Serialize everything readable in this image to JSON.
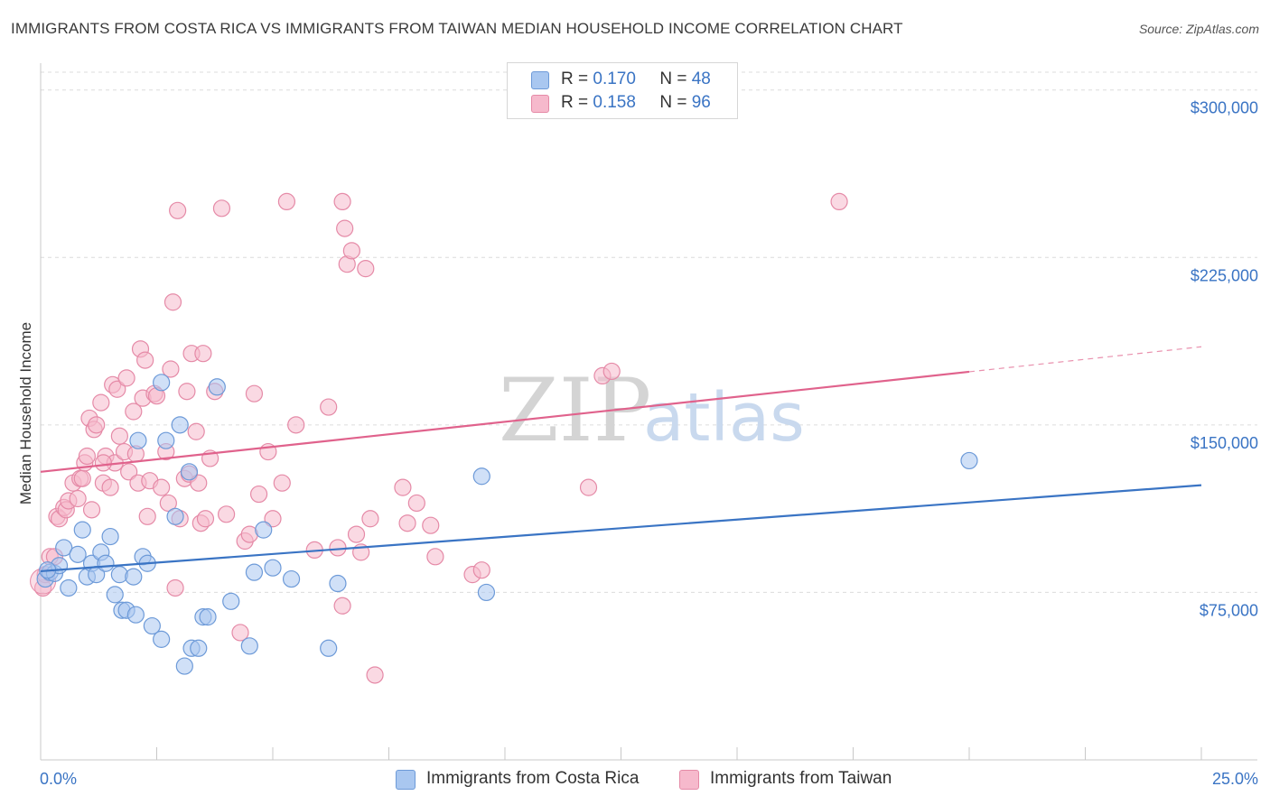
{
  "title": "IMMIGRANTS FROM COSTA RICA VS IMMIGRANTS FROM TAIWAN MEDIAN HOUSEHOLD INCOME CORRELATION CHART",
  "source": "Source: ZipAtlas.com",
  "colors": {
    "blue_fill": "#a9c7f0",
    "blue_stroke": "#6d9ad8",
    "blue_line": "#3a74c4",
    "pink_fill": "#f6b9cc",
    "pink_stroke": "#e58aa7",
    "pink_line": "#e0628c",
    "axis_text": "#3a74c4",
    "grid": "#dcdcdc"
  },
  "legend": {
    "rows": [
      {
        "r_label": "R =",
        "r_value": "0.170",
        "n_label": "N =",
        "n_value": "48",
        "color": "#a9c7f0"
      },
      {
        "r_label": "R =",
        "r_value": "0.158",
        "n_label": "N =",
        "n_value": "96",
        "color": "#f6b9cc"
      }
    ]
  },
  "bottom_legend": [
    {
      "label": "Immigrants from Costa Rica",
      "color": "#a9c7f0"
    },
    {
      "label": "Immigrants from Taiwan",
      "color": "#f6b9cc"
    }
  ],
  "chart_data": {
    "type": "scatter",
    "title": "IMMIGRANTS FROM COSTA RICA VS IMMIGRANTS FROM TAIWAN MEDIAN HOUSEHOLD INCOME CORRELATION CHART",
    "xlabel": "",
    "ylabel": "Median Household Income",
    "xlim": [
      0,
      25
    ],
    "ylim": [
      0,
      312000
    ],
    "x_tick_labels": [
      {
        "x": 0,
        "label": "0.0%"
      },
      {
        "x": 25,
        "label": "25.0%"
      }
    ],
    "y_ticks": [
      {
        "y": 75000,
        "label": "$75,000"
      },
      {
        "y": 150000,
        "label": "$150,000"
      },
      {
        "y": 225000,
        "label": "$225,000"
      },
      {
        "y": 300000,
        "label": "$300,000"
      }
    ],
    "watermark": [
      "ZIP",
      "atlas"
    ],
    "series": [
      {
        "name": "Immigrants from Costa Rica",
        "r": 0.17,
        "n": 48,
        "trend": {
          "x0": 0,
          "y0": 84500,
          "x1": 25,
          "y1": 123000,
          "dashed_from_x": null
        },
        "points": [
          [
            0.1,
            81000
          ],
          [
            0.2,
            84000
          ],
          [
            0.3,
            83500
          ],
          [
            0.4,
            87000
          ],
          [
            0.5,
            95000
          ],
          [
            0.6,
            77000
          ],
          [
            0.8,
            92000
          ],
          [
            0.9,
            103000
          ],
          [
            1.0,
            82000
          ],
          [
            1.1,
            88000
          ],
          [
            1.2,
            83000
          ],
          [
            1.3,
            93000
          ],
          [
            1.4,
            88000
          ],
          [
            1.5,
            100000
          ],
          [
            1.6,
            74000
          ],
          [
            1.7,
            83000
          ],
          [
            1.75,
            67000
          ],
          [
            1.85,
            67000
          ],
          [
            2.0,
            82000
          ],
          [
            2.05,
            65000
          ],
          [
            2.1,
            143000
          ],
          [
            2.2,
            91000
          ],
          [
            2.3,
            88000
          ],
          [
            2.4,
            60000
          ],
          [
            2.6,
            169000
          ],
          [
            2.6,
            54000
          ],
          [
            2.7,
            143000
          ],
          [
            2.9,
            109000
          ],
          [
            3.0,
            150000
          ],
          [
            3.1,
            42000
          ],
          [
            3.2,
            129000
          ],
          [
            3.25,
            50000
          ],
          [
            3.4,
            50000
          ],
          [
            3.5,
            64000
          ],
          [
            3.6,
            64000
          ],
          [
            3.8,
            167000
          ],
          [
            4.1,
            71000
          ],
          [
            4.5,
            51000
          ],
          [
            4.6,
            84000
          ],
          [
            4.8,
            103000
          ],
          [
            5.0,
            86000
          ],
          [
            5.4,
            81000
          ],
          [
            6.2,
            50000
          ],
          [
            6.4,
            79000
          ],
          [
            9.5,
            127000
          ],
          [
            9.6,
            75000
          ],
          [
            20.0,
            134000
          ],
          [
            0.15,
            85000
          ]
        ]
      },
      {
        "name": "Immigrants from Taiwan",
        "r": 0.158,
        "n": 96,
        "trend": {
          "x0": 0,
          "y0": 129000,
          "x1": 25,
          "y1": 185000,
          "dashed_from_x": 20
        },
        "points": [
          [
            0.05,
            77000
          ],
          [
            0.1,
            83000
          ],
          [
            0.2,
            91000
          ],
          [
            0.3,
            91000
          ],
          [
            0.35,
            109000
          ],
          [
            0.4,
            108000
          ],
          [
            0.5,
            113000
          ],
          [
            0.55,
            112000
          ],
          [
            0.6,
            116000
          ],
          [
            0.7,
            124000
          ],
          [
            0.8,
            117000
          ],
          [
            0.85,
            126000
          ],
          [
            0.9,
            126000
          ],
          [
            0.95,
            133000
          ],
          [
            1.0,
            136000
          ],
          [
            1.05,
            153000
          ],
          [
            1.1,
            112000
          ],
          [
            1.15,
            148000
          ],
          [
            1.2,
            150000
          ],
          [
            1.3,
            160000
          ],
          [
            1.35,
            124000
          ],
          [
            1.4,
            136000
          ],
          [
            1.5,
            122000
          ],
          [
            1.55,
            168000
          ],
          [
            1.6,
            133000
          ],
          [
            1.65,
            166000
          ],
          [
            1.7,
            145000
          ],
          [
            1.8,
            138000
          ],
          [
            1.85,
            171000
          ],
          [
            1.9,
            129000
          ],
          [
            2.0,
            156000
          ],
          [
            2.05,
            137000
          ],
          [
            2.1,
            124000
          ],
          [
            2.15,
            184000
          ],
          [
            2.2,
            162000
          ],
          [
            2.25,
            179000
          ],
          [
            2.3,
            109000
          ],
          [
            2.35,
            125000
          ],
          [
            2.45,
            164000
          ],
          [
            2.5,
            163000
          ],
          [
            2.6,
            122000
          ],
          [
            2.7,
            138000
          ],
          [
            2.75,
            115000
          ],
          [
            2.8,
            175000
          ],
          [
            2.85,
            205000
          ],
          [
            2.9,
            77000
          ],
          [
            2.95,
            246000
          ],
          [
            3.0,
            108000
          ],
          [
            3.1,
            126000
          ],
          [
            3.15,
            165000
          ],
          [
            3.2,
            128000
          ],
          [
            3.25,
            182000
          ],
          [
            3.35,
            147000
          ],
          [
            3.4,
            124000
          ],
          [
            3.45,
            106000
          ],
          [
            3.5,
            182000
          ],
          [
            3.55,
            108000
          ],
          [
            3.65,
            135000
          ],
          [
            3.75,
            165000
          ],
          [
            3.9,
            247000
          ],
          [
            4.0,
            110000
          ],
          [
            4.3,
            57000
          ],
          [
            4.4,
            98000
          ],
          [
            4.5,
            101000
          ],
          [
            4.6,
            164000
          ],
          [
            4.7,
            119000
          ],
          [
            4.9,
            138000
          ],
          [
            5.0,
            108000
          ],
          [
            5.2,
            124000
          ],
          [
            5.3,
            250000
          ],
          [
            5.5,
            150000
          ],
          [
            5.9,
            94000
          ],
          [
            6.2,
            158000
          ],
          [
            6.4,
            95000
          ],
          [
            6.5,
            250000
          ],
          [
            6.55,
            238000
          ],
          [
            6.6,
            222000
          ],
          [
            6.7,
            228000
          ],
          [
            6.8,
            101000
          ],
          [
            6.9,
            93000
          ],
          [
            7.0,
            220000
          ],
          [
            7.1,
            108000
          ],
          [
            7.2,
            38000
          ],
          [
            7.8,
            122000
          ],
          [
            7.9,
            106000
          ],
          [
            8.1,
            115000
          ],
          [
            8.4,
            105000
          ],
          [
            8.5,
            91000
          ],
          [
            9.3,
            83000
          ],
          [
            9.5,
            85000
          ],
          [
            11.8,
            122000
          ],
          [
            12.1,
            172000
          ],
          [
            12.3,
            174000
          ],
          [
            17.2,
            250000
          ],
          [
            6.5,
            69000
          ],
          [
            1.35,
            133000
          ]
        ]
      }
    ]
  }
}
